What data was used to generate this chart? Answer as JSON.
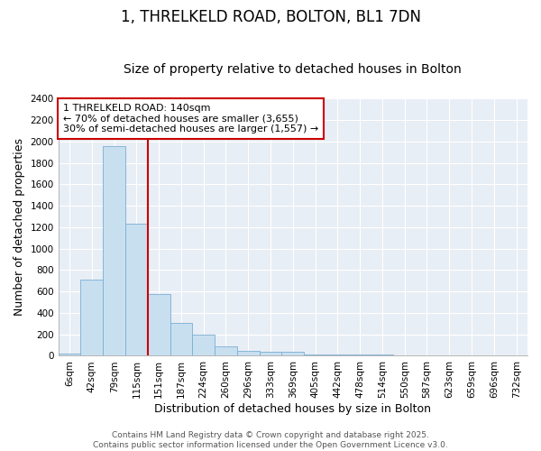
{
  "title": "1, THRELKELD ROAD, BOLTON, BL1 7DN",
  "subtitle": "Size of property relative to detached houses in Bolton",
  "xlabel": "Distribution of detached houses by size in Bolton",
  "ylabel": "Number of detached properties",
  "bar_labels": [
    "6sqm",
    "42sqm",
    "79sqm",
    "115sqm",
    "151sqm",
    "187sqm",
    "224sqm",
    "260sqm",
    "296sqm",
    "333sqm",
    "369sqm",
    "405sqm",
    "442sqm",
    "478sqm",
    "514sqm",
    "550sqm",
    "587sqm",
    "623sqm",
    "659sqm",
    "696sqm",
    "732sqm"
  ],
  "bar_values": [
    20,
    710,
    1960,
    1230,
    575,
    305,
    200,
    85,
    45,
    35,
    35,
    15,
    15,
    10,
    10,
    5,
    3,
    2,
    2,
    1,
    1
  ],
  "bar_color": "#c8dff0",
  "bar_edge_color": "#7aafd4",
  "vline_x_idx": 4,
  "vline_color": "#cc0000",
  "annotation_line1": "1 THRELKELD ROAD: 140sqm",
  "annotation_line2": "← 70% of detached houses are smaller (3,655)",
  "annotation_line3": "30% of semi-detached houses are larger (1,557) →",
  "annotation_box_facecolor": "#ffffff",
  "annotation_box_edgecolor": "#cc0000",
  "ylim": [
    0,
    2400
  ],
  "yticks": [
    0,
    200,
    400,
    600,
    800,
    1000,
    1200,
    1400,
    1600,
    1800,
    2000,
    2200,
    2400
  ],
  "plot_bg": "#e8eef5",
  "grid_color": "#ffffff",
  "footer_text": "Contains HM Land Registry data © Crown copyright and database right 2025.\nContains public sector information licensed under the Open Government Licence v3.0.",
  "title_fontsize": 12,
  "subtitle_fontsize": 10,
  "axis_label_fontsize": 9,
  "tick_fontsize": 7.5,
  "annotation_fontsize": 8,
  "footer_fontsize": 6.5
}
